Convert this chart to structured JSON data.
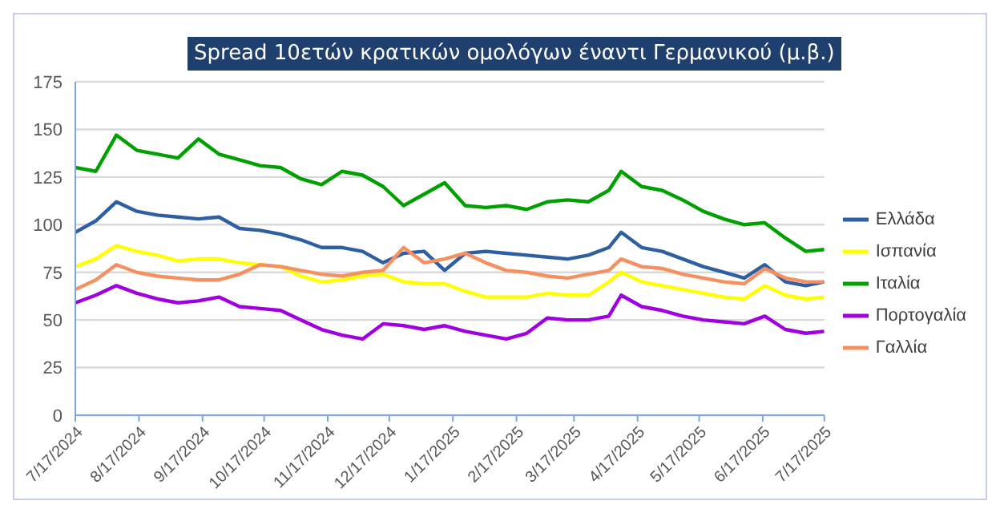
{
  "chart_data": {
    "type": "line",
    "title": "Spread 10ετών κρατικών ομολόγων έναντι Γερμανικού (μ.β.)",
    "x": [
      "2024-07-17",
      "2024-07-27",
      "2024-08-06",
      "2024-08-16",
      "2024-08-26",
      "2024-09-05",
      "2024-09-15",
      "2024-09-25",
      "2024-10-05",
      "2024-10-15",
      "2024-10-25",
      "2024-11-04",
      "2024-11-14",
      "2024-11-24",
      "2024-12-04",
      "2024-12-14",
      "2024-12-24",
      "2025-01-03",
      "2025-01-13",
      "2025-01-23",
      "2025-02-02",
      "2025-02-12",
      "2025-02-22",
      "2025-03-04",
      "2025-03-14",
      "2025-03-24",
      "2025-04-03",
      "2025-04-09",
      "2025-04-19",
      "2025-04-29",
      "2025-05-09",
      "2025-05-19",
      "2025-05-29",
      "2025-06-08",
      "2025-06-18",
      "2025-06-28",
      "2025-07-08",
      "2025-07-17"
    ],
    "series": [
      {
        "name": "Ελλάδα",
        "color": "#2e5fa3",
        "values": [
          96,
          102,
          112,
          107,
          105,
          104,
          103,
          104,
          98,
          97,
          95,
          92,
          88,
          88,
          86,
          80,
          85,
          86,
          76,
          85,
          86,
          85,
          84,
          83,
          82,
          84,
          88,
          96,
          88,
          86,
          82,
          78,
          75,
          72,
          79,
          70,
          68,
          70
        ]
      },
      {
        "name": "Ισπανία",
        "color": "#ffff00",
        "values": [
          78,
          82,
          89,
          86,
          84,
          81,
          82,
          82,
          80,
          79,
          78,
          73,
          70,
          71,
          73,
          74,
          70,
          69,
          69,
          65,
          62,
          62,
          62,
          64,
          63,
          63,
          70,
          75,
          70,
          68,
          66,
          64,
          62,
          61,
          68,
          63,
          61,
          62
        ]
      },
      {
        "name": "Ιταλία",
        "color": "#00a000",
        "values": [
          130,
          128,
          147,
          139,
          137,
          135,
          145,
          137,
          134,
          131,
          130,
          124,
          121,
          128,
          126,
          120,
          110,
          116,
          122,
          110,
          109,
          110,
          108,
          112,
          113,
          112,
          118,
          128,
          120,
          118,
          113,
          107,
          103,
          100,
          101,
          93,
          86,
          87
        ]
      },
      {
        "name": "Πορτογαλία",
        "color": "#a000e0",
        "values": [
          59,
          63,
          68,
          64,
          61,
          59,
          60,
          62,
          57,
          56,
          55,
          50,
          45,
          42,
          40,
          48,
          47,
          45,
          47,
          44,
          42,
          40,
          43,
          51,
          50,
          50,
          52,
          63,
          57,
          55,
          52,
          50,
          49,
          48,
          52,
          45,
          43,
          44
        ]
      },
      {
        "name": "Γαλλία",
        "color": "#f79060",
        "values": [
          66,
          71,
          79,
          75,
          73,
          72,
          71,
          71,
          74,
          79,
          78,
          76,
          74,
          73,
          75,
          76,
          88,
          80,
          82,
          85,
          80,
          76,
          75,
          73,
          72,
          74,
          76,
          82,
          78,
          77,
          74,
          72,
          70,
          69,
          77,
          72,
          70,
          70
        ]
      }
    ],
    "xlim": [
      "2024-07-17",
      "2025-07-17"
    ],
    "xticks": [
      {
        "value": "2024-07-17",
        "label": "7/17/2024"
      },
      {
        "value": "2024-08-17",
        "label": "8/17/2024"
      },
      {
        "value": "2024-09-17",
        "label": "9/17/2024"
      },
      {
        "value": "2024-10-17",
        "label": "10/17/2024"
      },
      {
        "value": "2024-11-17",
        "label": "11/17/2024"
      },
      {
        "value": "2024-12-17",
        "label": "12/17/2024"
      },
      {
        "value": "2025-01-17",
        "label": "1/17/2025"
      },
      {
        "value": "2025-02-17",
        "label": "2/17/2025"
      },
      {
        "value": "2025-03-17",
        "label": "3/17/2025"
      },
      {
        "value": "2025-04-17",
        "label": "4/17/2025"
      },
      {
        "value": "2025-05-17",
        "label": "5/17/2025"
      },
      {
        "value": "2025-06-17",
        "label": "6/17/2025"
      },
      {
        "value": "2025-07-17",
        "label": "7/17/2025"
      }
    ],
    "ylim": [
      0,
      175
    ],
    "yticks": [
      0,
      25,
      50,
      75,
      100,
      125,
      150,
      175
    ],
    "grid": "y",
    "legend": "right",
    "marker": "none",
    "line_style": "solid"
  }
}
